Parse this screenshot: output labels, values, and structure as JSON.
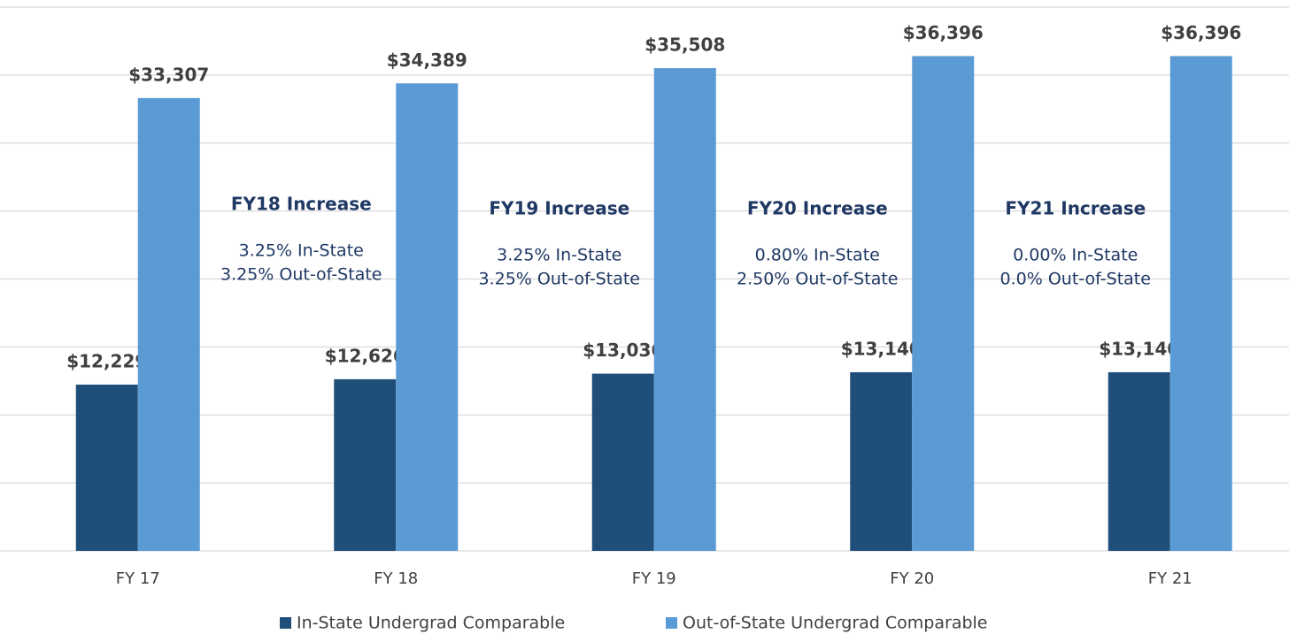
{
  "chart_data": {
    "type": "bar",
    "categories": [
      "FY 17",
      "FY 18",
      "FY 19",
      "FY 20",
      "FY 21"
    ],
    "series": [
      {
        "name": "In-State Undergrad Comparable",
        "color": "#1f4e79",
        "values": [
          12229,
          12626,
          13036,
          13140,
          13140
        ],
        "value_labels": [
          "$12,229",
          "$12,626",
          "$13,036",
          "$13,140",
          "$13,140"
        ]
      },
      {
        "name": "Out-of-State Undergrad Comparable",
        "color": "#5b9bd5",
        "values": [
          33307,
          34389,
          35508,
          36396,
          36396
        ],
        "value_labels": [
          "$33,307",
          "$34,389",
          "$35,508",
          "$36,396",
          "$36,396"
        ]
      }
    ],
    "annotations": [
      {
        "title": "FY18 Increase",
        "lines": [
          "3.25% In-State",
          "3.25% Out-of-State"
        ]
      },
      {
        "title": "FY19 Increase",
        "lines": [
          "3.25% In-State",
          "3.25% Out-of-State"
        ]
      },
      {
        "title": "FY20 Increase",
        "lines": [
          "0.80% In-State",
          "2.50% Out-of-State"
        ]
      },
      {
        "title": "FY21 Increase",
        "lines": [
          "0.00% In-State",
          "0.0% Out-of-State"
        ]
      }
    ],
    "ylim": [
      0,
      40000
    ],
    "yticks": [
      0,
      5000,
      10000,
      15000,
      20000,
      25000,
      30000,
      35000,
      40000
    ],
    "grid": true,
    "legend": "bottom"
  }
}
